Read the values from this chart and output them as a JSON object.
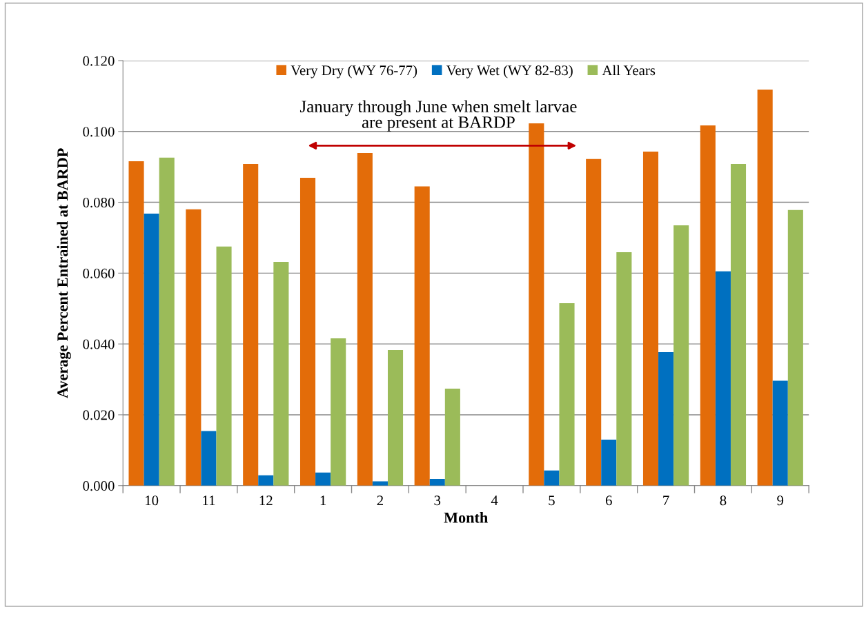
{
  "chart_data": {
    "type": "bar",
    "xlabel": "Month",
    "ylabel": "Average Percent Entrained at BARDP",
    "categories": [
      "10",
      "11",
      "12",
      "1",
      "2",
      "3",
      "4",
      "5",
      "6",
      "7",
      "8",
      "9"
    ],
    "series": [
      {
        "name": "Very Dry (WY 76-77)",
        "color": "#e36c09",
        "values": [
          0.0916,
          0.078,
          0.0908,
          0.0869,
          0.0939,
          0.0845,
          null,
          0.1023,
          0.0922,
          0.0943,
          0.1017,
          0.1118
        ]
      },
      {
        "name": "Very Wet (WY 82-83)",
        "color": "#0070c0",
        "values": [
          0.0768,
          0.0154,
          0.0029,
          0.0037,
          0.0012,
          0.0019,
          null,
          0.0043,
          0.013,
          0.0377,
          0.0605,
          0.0296
        ]
      },
      {
        "name": "All Years",
        "color": "#9bbb59",
        "values": [
          0.0926,
          0.0675,
          0.0632,
          0.0416,
          0.0383,
          0.0274,
          null,
          0.0515,
          0.0659,
          0.0735,
          0.0908,
          0.0778
        ]
      }
    ],
    "ylim": [
      0,
      0.12
    ],
    "yticks": [
      {
        "value": 0,
        "label": "0.000"
      },
      {
        "value": 0.02,
        "label": "0.020"
      },
      {
        "value": 0.04,
        "label": "0.040"
      },
      {
        "value": 0.06,
        "label": "0.060"
      },
      {
        "value": 0.08,
        "label": "0.080"
      },
      {
        "value": 0.1,
        "label": "0.100"
      },
      {
        "value": 0.12,
        "label": "0.120"
      }
    ],
    "grid": "y",
    "legend": "top",
    "annotations": [
      "January through June when smelt larvae\nare present at BARDP"
    ]
  }
}
